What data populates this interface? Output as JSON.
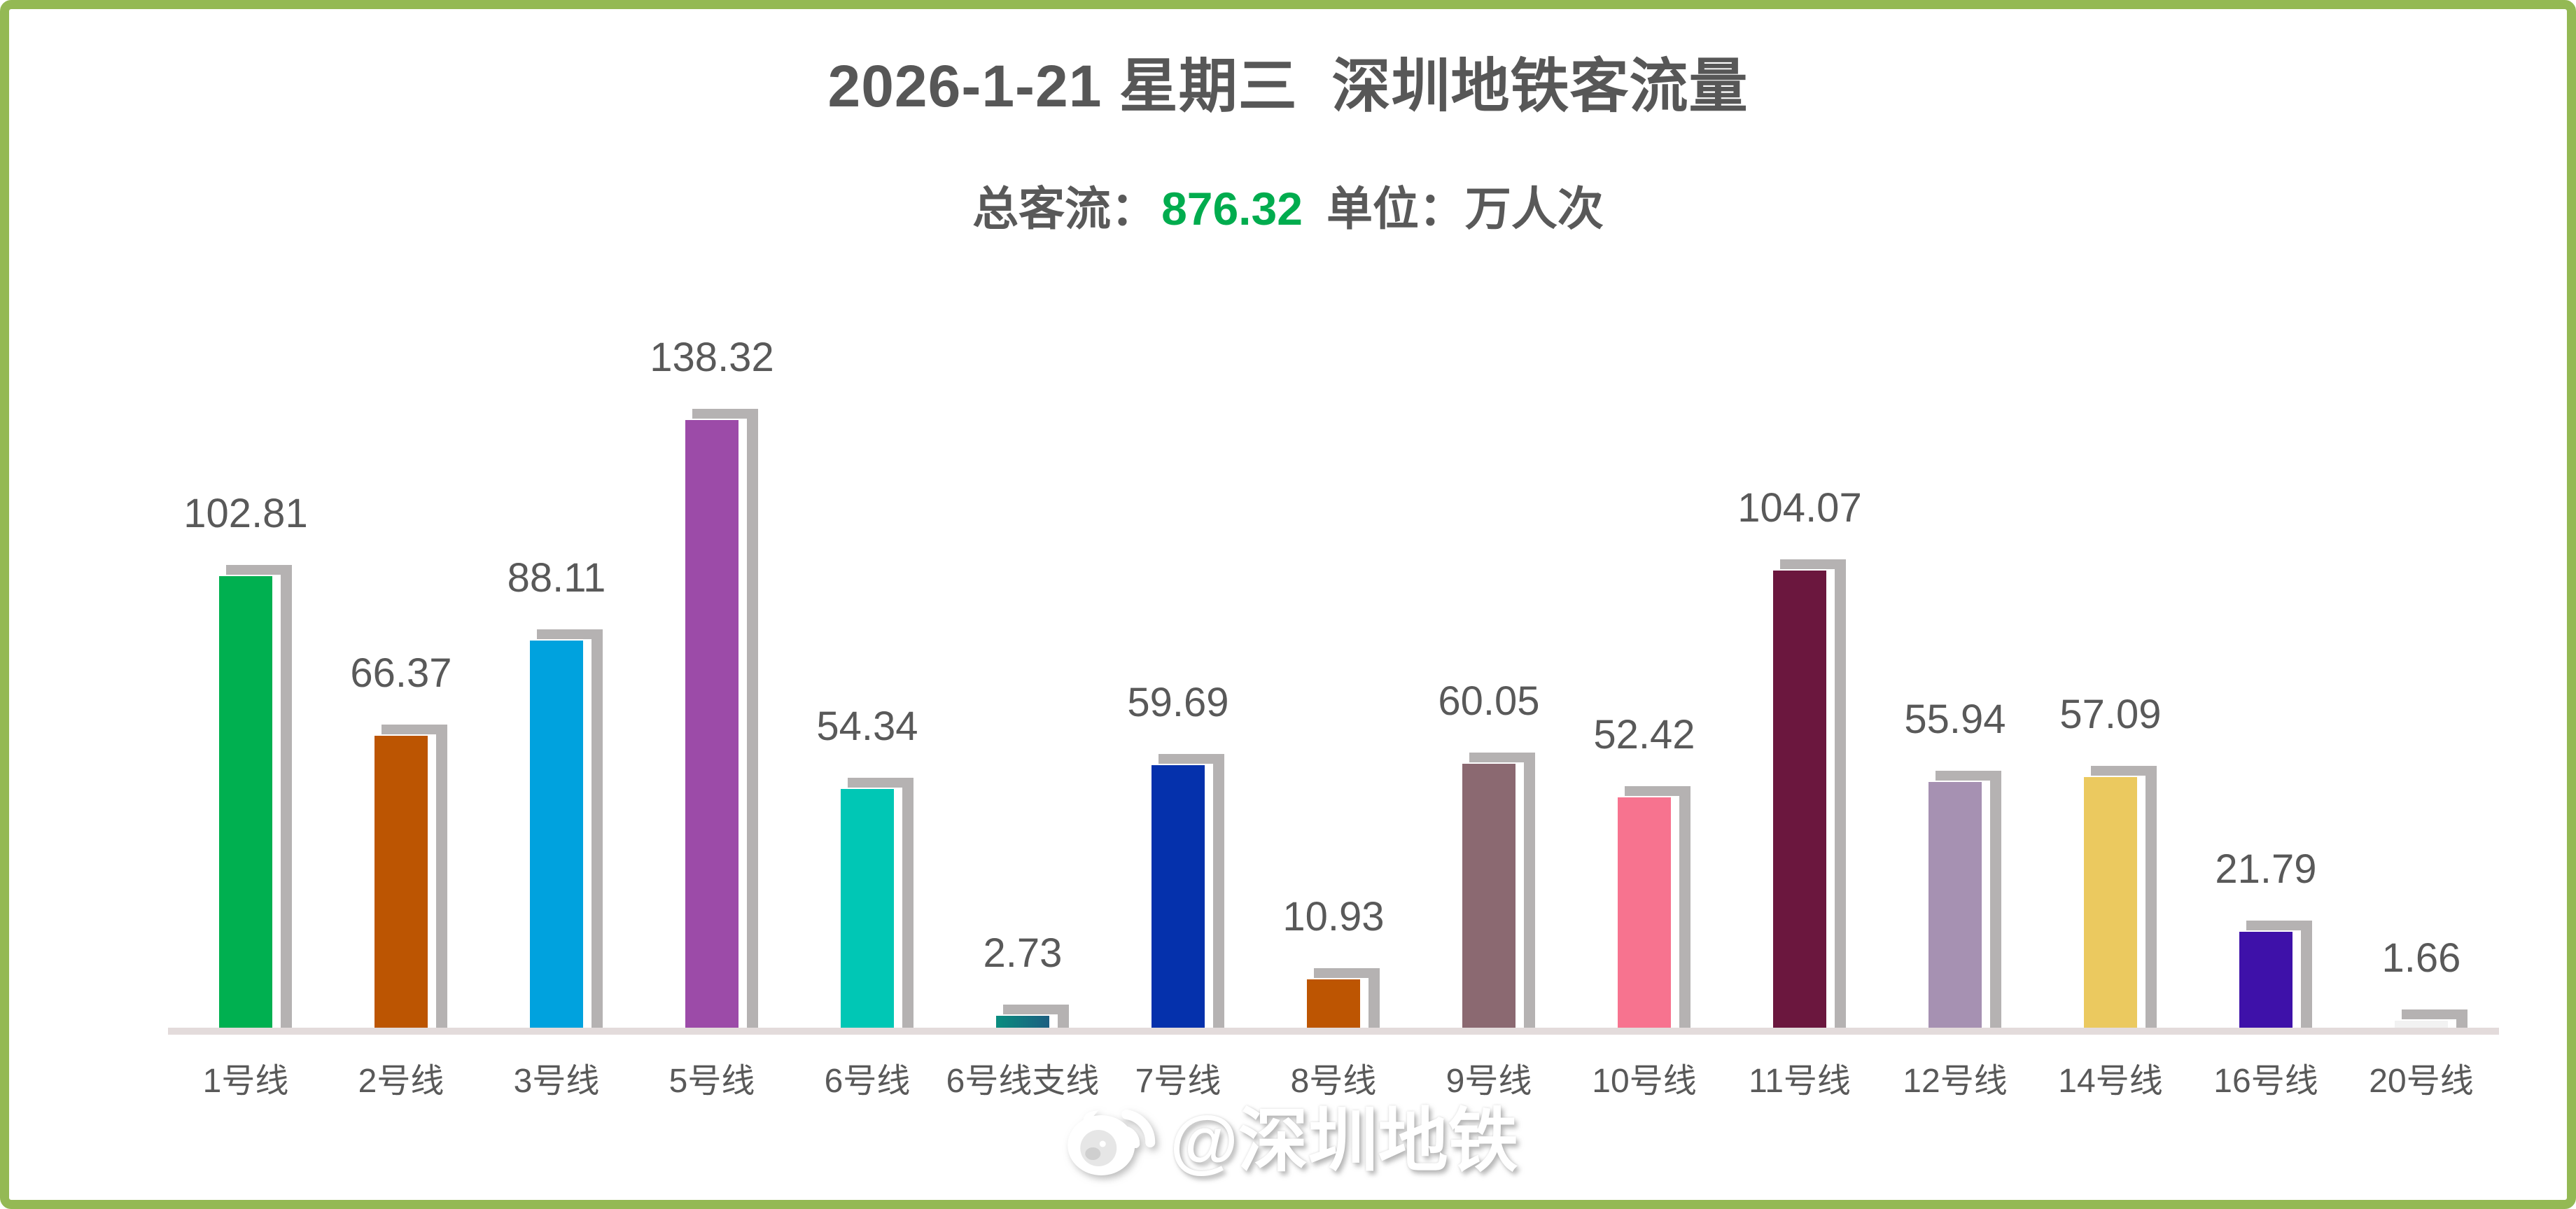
{
  "header": {
    "title": "2026-1-21 星期三  深圳地铁客流量",
    "subtitle_label": "总客流：",
    "subtitle_value": "876.32",
    "subtitle_unit": "单位：万人次"
  },
  "chart_data": {
    "type": "bar",
    "title": "2026-1-21 星期三 深圳地铁客流量",
    "total": 876.32,
    "unit": "万人次",
    "categories": [
      "1号线",
      "2号线",
      "3号线",
      "5号线",
      "6号线",
      "6号线支线",
      "7号线",
      "8号线",
      "9号线",
      "10号线",
      "11号线",
      "12号线",
      "14号线",
      "16号线",
      "20号线"
    ],
    "values": [
      102.81,
      66.37,
      88.11,
      138.32,
      54.34,
      2.73,
      59.69,
      10.93,
      60.05,
      52.42,
      104.07,
      55.94,
      57.09,
      21.79,
      1.66
    ],
    "bar_colors": [
      "#00B050",
      "#BC5502",
      "#00A2DE",
      "#9C4BA8",
      "#00C7B5",
      [
        "#0A8D7F",
        "#1C5E80"
      ],
      "#0531AC",
      "#BD5502",
      "#8B6971",
      "#F7738F",
      "#6B173E",
      "#A691B2",
      "#EBC95F",
      "#3E11A9",
      "#F2F2F2"
    ],
    "value_labels_shown": true,
    "ylim": [
      0,
      150
    ],
    "grid": false,
    "legend": false
  },
  "watermark": {
    "icon": "weibo-icon",
    "text": "@深圳地铁"
  },
  "style": {
    "frame_color": "#94B954",
    "title_color": "#575757",
    "text_color": "#595959",
    "total_value_color": "#00AC4E",
    "bar_shadow_color": "#B5B2B2",
    "axis_line_color": "#E3DBDB"
  }
}
